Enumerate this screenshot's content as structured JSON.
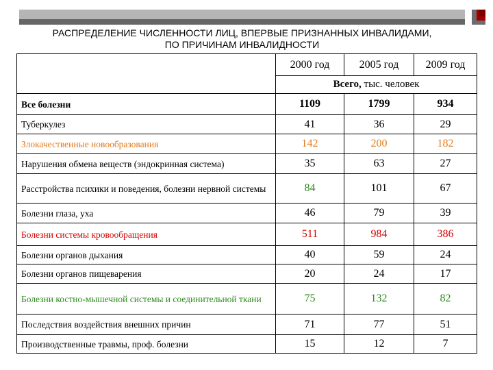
{
  "title_line1": "РАСПРЕДЕЛЕНИЕ ЧИСЛЕННОСТИ ЛИЦ, ВПЕРВЫЕ ПРИЗНАННЫХ  ИНВАЛИДАМИ,",
  "title_line2": "ПО ПРИЧИНАМ ИНВАЛИДНОСТИ",
  "columns": [
    "2000 год",
    "2005 год",
    "2009 год"
  ],
  "total_label_bold": "Всего,",
  "total_label_rest": " тыс. человек",
  "colors": {
    "orange": "#e07b1c",
    "red": "#d40000",
    "green": "#2b8a1a"
  },
  "rows": [
    {
      "name": "Все болезни",
      "values": [
        "1109",
        "1799",
        "934"
      ]
    },
    {
      "name": "Туберкулез",
      "values": [
        "41",
        "36",
        "29"
      ]
    },
    {
      "name": "Злокачественные новообразования",
      "values": [
        "142",
        "200",
        "182"
      ]
    },
    {
      "name": "Нарушения обмена веществ (эндокринная система)",
      "values": [
        "35",
        "63",
        "27"
      ]
    },
    {
      "name": "Расстройства психики и поведения, болезни нервной системы",
      "values": [
        "84",
        "101",
        "67"
      ]
    },
    {
      "name": "Болезни глаза, уха",
      "values": [
        "46",
        "79",
        "39"
      ]
    },
    {
      "name": "Болезни системы кровообращения",
      "values": [
        "511",
        "984",
        "386"
      ]
    },
    {
      "name": "Болезни органов дыхания",
      "values": [
        "40",
        "59",
        "24"
      ]
    },
    {
      "name": "Болезни органов пищеварения",
      "values": [
        "20",
        "24",
        "17"
      ]
    },
    {
      "name": "Болезни костно-мышечной системы и соединительной ткани",
      "values": [
        "75",
        "132",
        "82"
      ]
    },
    {
      "name": "Последствия воздействия внешних причин",
      "values": [
        "71",
        "77",
        "51"
      ]
    },
    {
      "name": "Производственные травмы, проф. болезни",
      "values": [
        "15",
        "12",
        "7"
      ]
    }
  ]
}
